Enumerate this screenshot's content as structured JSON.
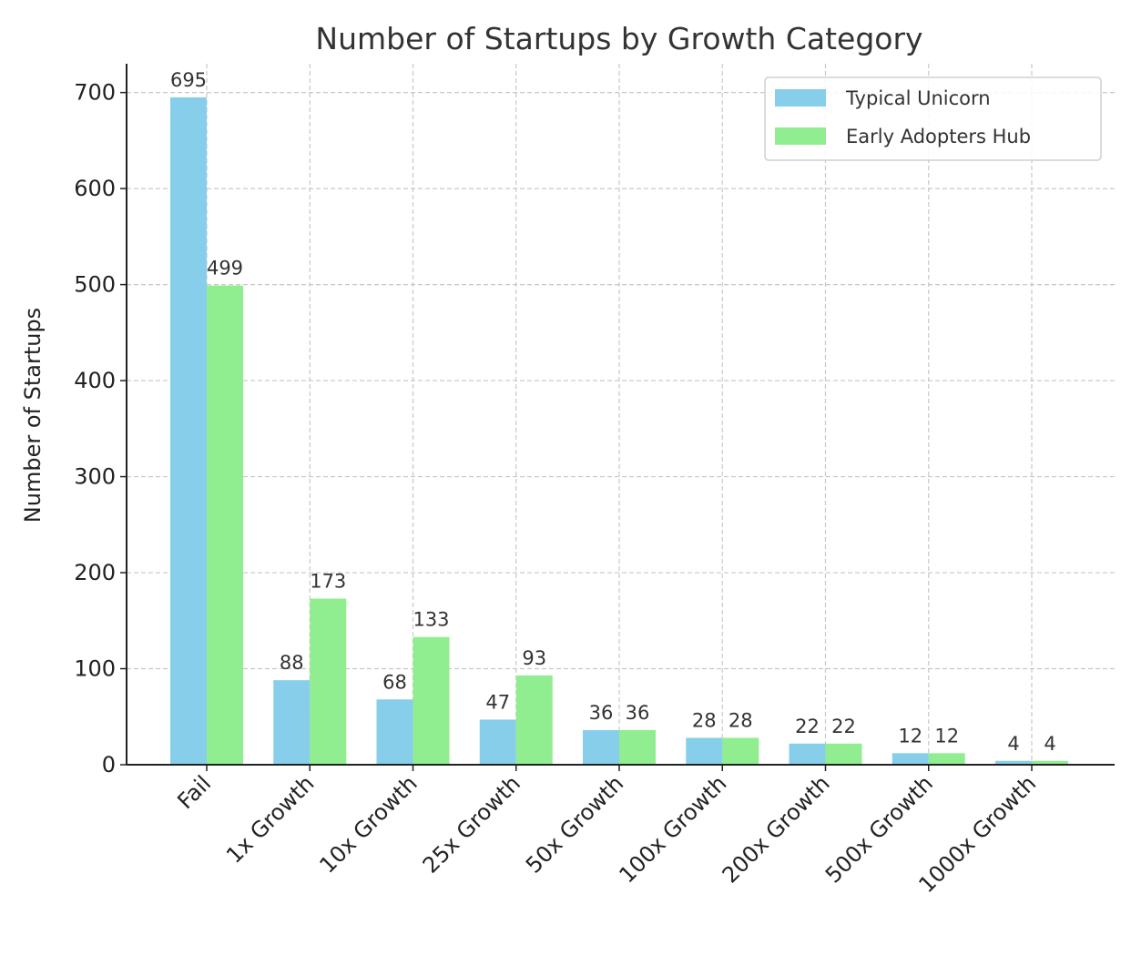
{
  "chart_data": {
    "type": "bar",
    "title": "Number of Startups by Growth Category",
    "xlabel": "",
    "ylabel": "Number of Startups",
    "categories": [
      "Fail",
      "1x Growth",
      "10x Growth",
      "25x Growth",
      "50x Growth",
      "100x Growth",
      "200x Growth",
      "500x Growth",
      "1000x Growth"
    ],
    "series": [
      {
        "name": "Typical Unicorn",
        "color": "#87CEEB",
        "values": [
          695,
          88,
          68,
          47,
          36,
          28,
          22,
          12,
          4
        ]
      },
      {
        "name": "Early Adopters Hub",
        "color": "#90EE90",
        "values": [
          499,
          173,
          133,
          93,
          36,
          28,
          22,
          12,
          4
        ]
      }
    ],
    "ylim": [
      0,
      730
    ],
    "yticks": [
      0,
      100,
      200,
      300,
      400,
      500,
      600,
      700
    ],
    "grid": true,
    "legend": "top-right",
    "data_labels": true
  }
}
